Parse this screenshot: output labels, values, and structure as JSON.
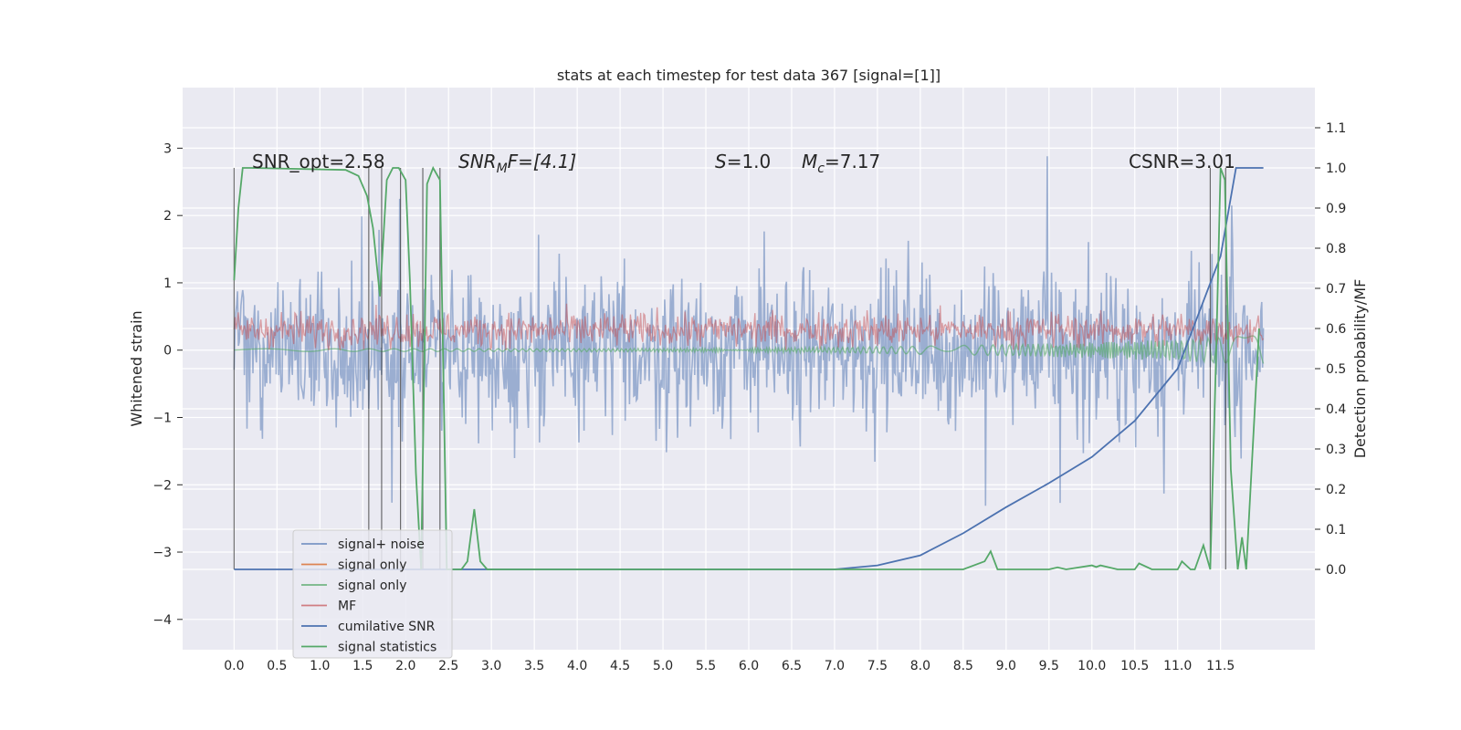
{
  "chart_data": {
    "type": "line",
    "title": "stats at each timestep for test data 367 [signal=[1]]",
    "xlabel": "",
    "ylabel": "Whitened strain",
    "y2label": "Detection probability/MF",
    "xlim": [
      -0.6,
      12.6
    ],
    "ylim": [
      -4.45,
      3.9
    ],
    "y2lim": [
      -0.2,
      1.2
    ],
    "xticks": [
      "0.0",
      "0.5",
      "1.0",
      "1.5",
      "2.0",
      "2.5",
      "3.0",
      "3.5",
      "4.0",
      "4.5",
      "5.0",
      "5.5",
      "6.0",
      "6.5",
      "7.0",
      "7.5",
      "8.0",
      "8.5",
      "9.0",
      "9.5",
      "10.0",
      "10.5",
      "11.0",
      "11.5"
    ],
    "yticks": [
      "3",
      "2",
      "1",
      "0",
      "−1",
      "−2",
      "−3",
      "−4"
    ],
    "y2ticks": [
      "1.1",
      "1.0",
      "0.9",
      "0.8",
      "0.7",
      "0.6",
      "0.5",
      "0.4",
      "0.3",
      "0.2",
      "0.1",
      "0.0"
    ],
    "grid": true,
    "legend_position": "lower-left",
    "annotations": {
      "snr_opt": "SNR_opt=2.58",
      "snr_mf_main": "SNR",
      "snr_mf_sub": "M",
      "snr_mf_rest": "F=[4.1]",
      "s_main": "S",
      "s_rest": "=1.0",
      "mc_main": "M",
      "mc_sub": "c",
      "mc_rest": "=7.17",
      "csnr": "CSNR=3.01"
    },
    "series": [
      {
        "name": "signal+ noise",
        "color": "#4c72b0",
        "opacity": 0.5,
        "axis": "left",
        "description_range": [
          -4.0,
          3.5
        ]
      },
      {
        "name": "signal only",
        "color": "#dd8452",
        "axis": "left"
      },
      {
        "name": "signal only",
        "color": "#55a868",
        "opacity": 0.6,
        "axis": "left"
      },
      {
        "name": "MF",
        "color": "#c44e52",
        "opacity": 0.5,
        "axis": "left"
      },
      {
        "name": "cumilative SNR",
        "color": "#4c72b0",
        "axis": "right",
        "x": [
          0.0,
          7.0,
          7.5,
          8.0,
          8.5,
          9.0,
          9.5,
          10.0,
          10.5,
          11.0,
          11.5,
          11.68,
          12.0
        ],
        "y": [
          0.0,
          0.0,
          0.01,
          0.035,
          0.09,
          0.155,
          0.215,
          0.28,
          0.37,
          0.5,
          0.78,
          1.0,
          1.0
        ]
      },
      {
        "name": "signal statistics",
        "color": "#55a868",
        "axis": "right",
        "x": [
          0.0,
          0.05,
          0.1,
          0.2,
          1.3,
          1.45,
          1.55,
          1.62,
          1.7,
          1.78,
          1.85,
          1.92,
          2.0,
          2.05,
          2.12,
          2.18,
          2.25,
          2.32,
          2.4,
          2.48,
          2.55,
          2.65,
          2.72,
          2.8,
          2.87,
          2.95,
          3.0,
          8.5,
          8.75,
          8.82,
          8.9,
          9.5,
          9.6,
          9.7,
          10.0,
          10.05,
          10.1,
          10.3,
          10.5,
          10.55,
          10.7,
          11.0,
          11.05,
          11.15,
          11.2,
          11.3,
          11.38,
          11.45,
          11.5,
          11.55,
          11.62,
          11.7,
          11.75,
          11.8,
          11.95
        ],
        "y": [
          0.72,
          0.9,
          1.0,
          1.0,
          0.995,
          0.98,
          0.93,
          0.85,
          0.68,
          0.97,
          1.0,
          1.0,
          0.97,
          0.72,
          0.24,
          0.0,
          0.96,
          1.0,
          0.97,
          0.0,
          0.0,
          0.0,
          0.02,
          0.15,
          0.02,
          0.0,
          0.0,
          0.0,
          0.02,
          0.045,
          0.0,
          0.0,
          0.005,
          0.0,
          0.01,
          0.006,
          0.01,
          0.0,
          0.0,
          0.015,
          0.0,
          0.0,
          0.02,
          0.0,
          0.0,
          0.06,
          0.0,
          0.55,
          1.0,
          0.97,
          0.25,
          0.0,
          0.08,
          0.0,
          0.6
        ]
      }
    ]
  }
}
